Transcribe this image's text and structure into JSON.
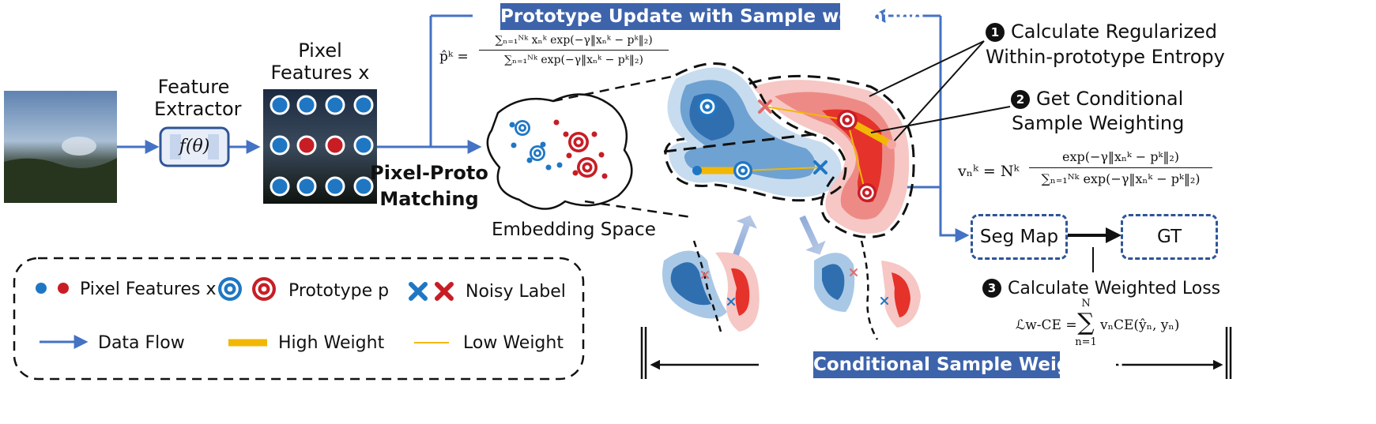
{
  "feature_extractor": {
    "label_line1": "Feature",
    "label_line2": "Extractor",
    "func": "f(θ)"
  },
  "pixel_features": {
    "label_line1": "Pixel",
    "label_line2": "Features x"
  },
  "matching": {
    "line1": "Pixel-Proto",
    "line2": "Matching"
  },
  "embedding": {
    "label": "Embedding Space"
  },
  "prototype_update": {
    "banner": "Prototype Update with Sample weighting",
    "formula_lhs": "p̂ᵏ =",
    "formula_num": "∑ₙ₌₁ᴺᵏ xₙᵏ exp(−γ‖xₙᵏ − pᵏ‖₂)",
    "formula_den": "∑ₙ₌₁ᴺᵏ exp(−γ‖xₙᵏ − pᵏ‖₂)"
  },
  "steps": {
    "step1_num": "1",
    "step1_line1": "Calculate Regularized",
    "step1_line2": "Within-prototype Entropy",
    "step2_num": "2",
    "step2_line1": "Get Conditional",
    "step2_line2": "Sample Weighting",
    "step3_num": "3",
    "step3_text": "Calculate Weighted Loss"
  },
  "weight_formula": {
    "lhs": "vₙᵏ = Nᵏ",
    "num": "exp(−γ‖xₙᵏ − pᵏ‖₂)",
    "den": "∑ₙ₌₁ᴺᵏ exp(−γ‖xₙᵏ − pᵏ‖₂)"
  },
  "loss_formula": {
    "lhs": "ℒw-CE =",
    "sum": "∑",
    "top": "N",
    "bottom": "n=1",
    "rhs": "vₙCE(ŷₙ, yₙ)"
  },
  "outputs": {
    "seg_map": "Seg Map",
    "gt": "GT"
  },
  "bottom_banner": "Conditional Sample Weighting",
  "legend": {
    "pixel_features": "Pixel Features x",
    "prototype": "Prototype p",
    "noisy_label": "Noisy Label",
    "data_flow": "Data Flow",
    "high_weight": "High Weight",
    "low_weight": "Low Weight"
  },
  "colors": {
    "blue": "#1f77c4",
    "red": "#c81d25",
    "arrow": "#4472c4",
    "banner": "#3d63ab",
    "weight": "#f2b705"
  }
}
